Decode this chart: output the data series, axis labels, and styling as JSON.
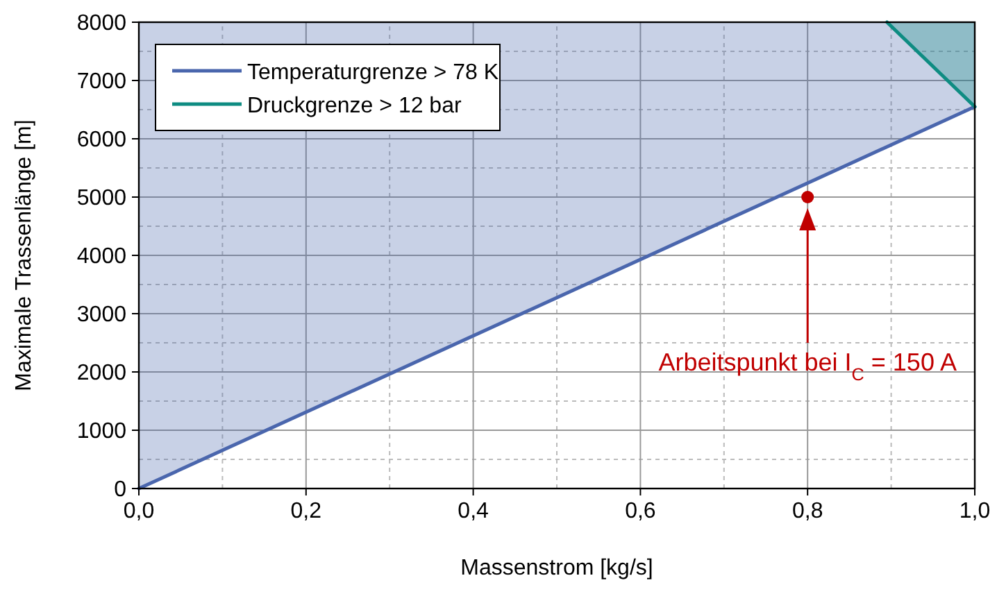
{
  "chart_data": {
    "type": "line",
    "xlabel": "Massenstrom [kg/s]",
    "ylabel": "Maximale Trassenlänge [m]",
    "xlim": [
      0,
      1
    ],
    "ylim": [
      0,
      8000
    ],
    "xticks": [
      {
        "value": 0,
        "label": "0,0"
      },
      {
        "value": 0.2,
        "label": "0,2"
      },
      {
        "value": 0.4,
        "label": "0,4"
      },
      {
        "value": 0.6,
        "label": "0,6"
      },
      {
        "value": 0.8,
        "label": "0,8"
      },
      {
        "value": 1,
        "label": "1,0"
      }
    ],
    "yticks": [
      0,
      1000,
      2000,
      3000,
      4000,
      5000,
      6000,
      7000,
      8000
    ],
    "grid": true,
    "legend": "top left",
    "series": [
      {
        "name": "Temperaturgrenze > 78 K",
        "color": "#4a66ad",
        "x": [
          0,
          1
        ],
        "values": [
          0,
          6550
        ],
        "lower": [
          0,
          6550
        ],
        "upper": [
          8000,
          8000
        ]
      },
      {
        "name": "Druckgrenze > 12 bar",
        "color": "#0e8c82",
        "x": [
          0.895,
          1
        ],
        "values": [
          8000,
          6550
        ],
        "lower": [
          8000,
          6550
        ],
        "upper": [
          8000,
          8000
        ]
      },
      {
        "type": "scatter",
        "color": "#c00000",
        "x": [
          0.8
        ],
        "values": [
          5000
        ],
        "marker": "circle"
      }
    ],
    "annotations": [
      "Arbeitspunkt bei I$_{C}$ = 150 A"
    ]
  }
}
